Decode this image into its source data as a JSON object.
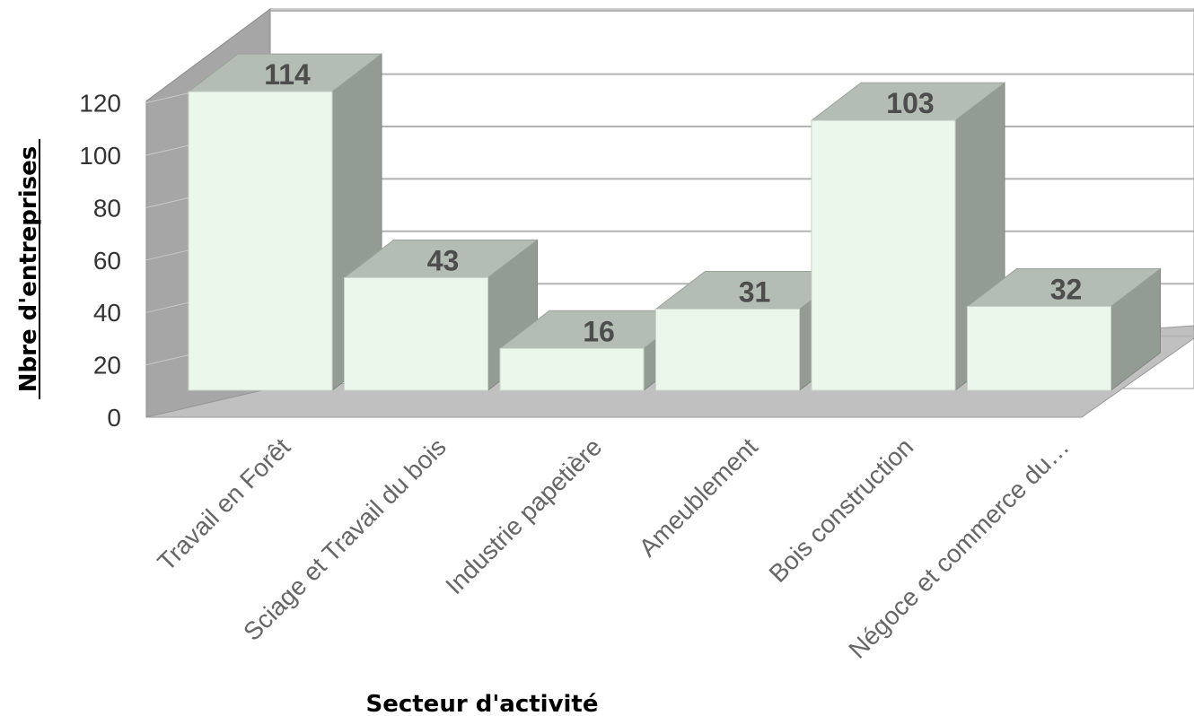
{
  "chart_data": {
    "type": "bar",
    "style": "3d-column",
    "categories": [
      "Travail en Forêt",
      "Sciage et Travail du bois",
      "Industrie papetière",
      "Ameublement",
      "Bois construction",
      "Négoce et commerce du…"
    ],
    "values": [
      114,
      43,
      16,
      31,
      103,
      32
    ],
    "data_labels": [
      "114",
      "43",
      "16",
      "31",
      "103",
      "32"
    ],
    "xlabel": "Secteur d'activité",
    "ylabel": "Nbre d'entreprises",
    "ylim": [
      0,
      120
    ],
    "yticks": [
      "0",
      "20",
      "40",
      "60",
      "80",
      "100",
      "120"
    ],
    "grid": true,
    "legend": "none"
  },
  "colors": {
    "bar_front": "#eaf7ea",
    "bar_top": "#b4bdb4",
    "bar_side": "#939c93",
    "back_wall": "#ffffff",
    "side_wall": "#a6a6a6",
    "floor": "#c0c0c0",
    "gridline": "#b3b3b3"
  }
}
